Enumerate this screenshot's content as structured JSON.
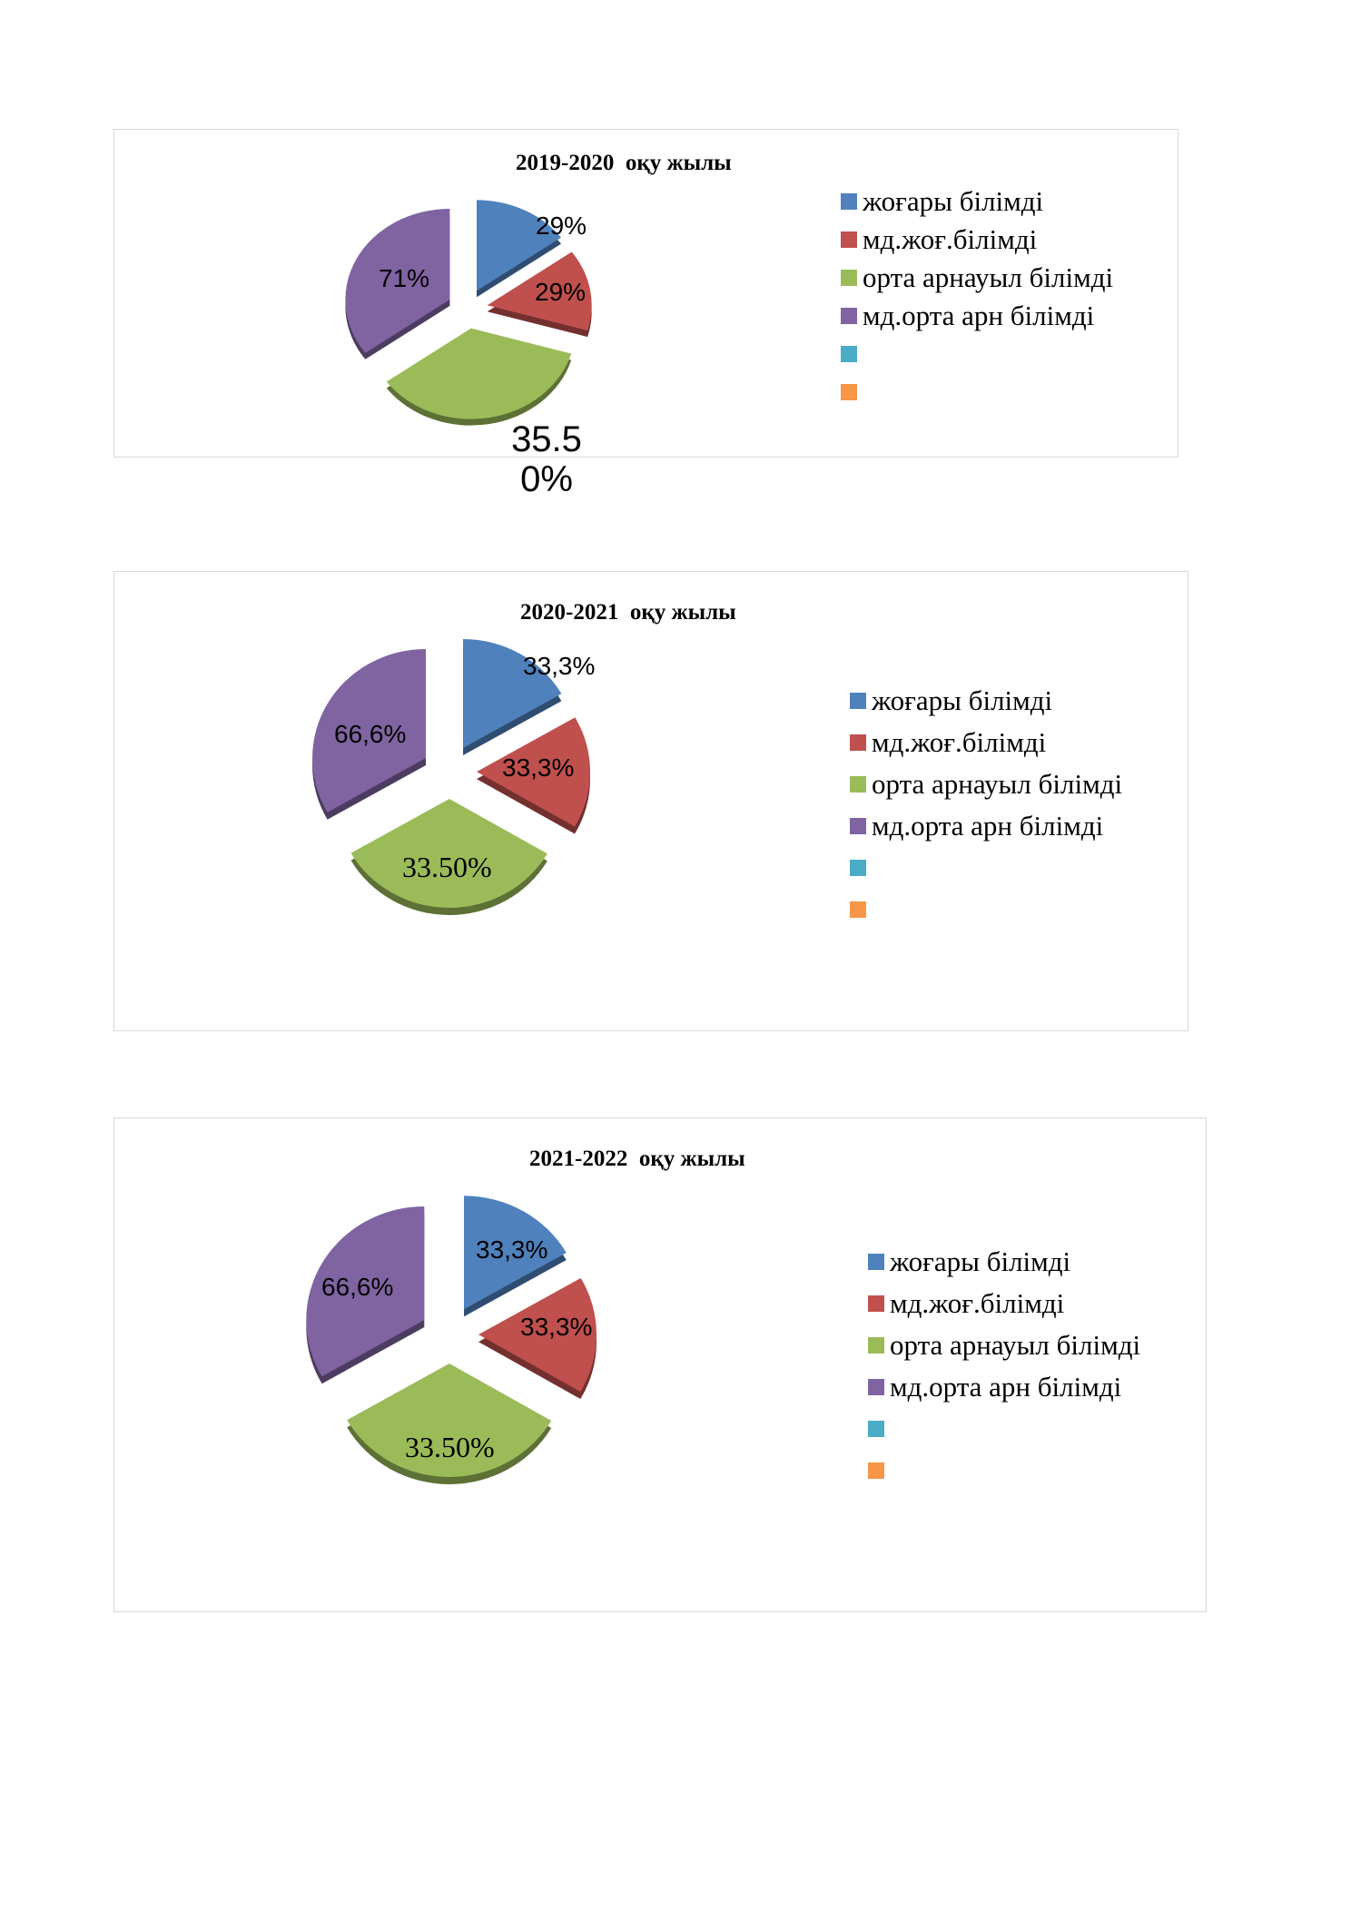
{
  "colors": {
    "blue": "#4f81bd",
    "red": "#c0504d",
    "green": "#9bbb59",
    "purple": "#8064a2",
    "teal": "#4bacc6",
    "orange": "#f79646"
  },
  "chart_data": [
    {
      "type": "pie",
      "title": "2019-2020  оқу жылы",
      "legend": [
        "жоғары білімді",
        "мд.жоғ.білімді",
        "орта арнауыл білімді",
        "мд.орта арн білімді",
        "",
        ""
      ],
      "legend_colors": [
        "blue",
        "red",
        "green",
        "purple",
        "teal",
        "orange"
      ],
      "legend_position": "right",
      "slices": [
        {
          "category": "жоғары білімді",
          "value": 15,
          "label": "29%",
          "color": "blue"
        },
        {
          "category": "мд.жоғ.білімді",
          "value": 14.5,
          "label": "29%",
          "color": "red"
        },
        {
          "category": "орта арнауыл білімді",
          "value": 35.5,
          "label": "35.5 0%",
          "color": "green"
        },
        {
          "category": "мд.орта арн білімді",
          "value": 35,
          "label": "71%",
          "color": "purple"
        }
      ]
    },
    {
      "type": "pie",
      "title": "2020-2021  оқу жылы",
      "legend": [
        "жоғары білімді",
        "мд.жоғ.білімді",
        "орта арнауыл білімді",
        "мд.орта арн білімді",
        "",
        ""
      ],
      "legend_colors": [
        "blue",
        "red",
        "green",
        "purple",
        "teal",
        "orange"
      ],
      "legend_position": "right",
      "slices": [
        {
          "category": "жоғары білімді",
          "value": 16.7,
          "label": "33,3%",
          "color": "blue"
        },
        {
          "category": "мд.жоғ.білімді",
          "value": 16.7,
          "label": "33,3%",
          "color": "red"
        },
        {
          "category": "орта арнауыл білімді",
          "value": 33.3,
          "label": "33.50%",
          "color": "green"
        },
        {
          "category": "мд.орта арн білімді",
          "value": 33.3,
          "label": "66,6%",
          "color": "purple"
        }
      ]
    },
    {
      "type": "pie",
      "title": "2021-2022  оқу жылы",
      "legend": [
        "жоғары білімді",
        "мд.жоғ.білімді",
        "орта арнауыл білімді",
        "мд.орта арн білімді",
        "",
        ""
      ],
      "legend_colors": [
        "blue",
        "red",
        "green",
        "purple",
        "teal",
        "orange"
      ],
      "legend_position": "right",
      "slices": [
        {
          "category": "жоғары білімді",
          "value": 16.7,
          "label": "33,3%",
          "color": "blue"
        },
        {
          "category": "мд.жоғ.білімді",
          "value": 16.7,
          "label": "33,3%",
          "color": "red"
        },
        {
          "category": "орта арнауыл білімді",
          "value": 33.3,
          "label": "33.50%",
          "color": "green"
        },
        {
          "category": "мд.орта арн білімді",
          "value": 33.3,
          "label": "66,6%",
          "color": "purple"
        }
      ]
    }
  ]
}
